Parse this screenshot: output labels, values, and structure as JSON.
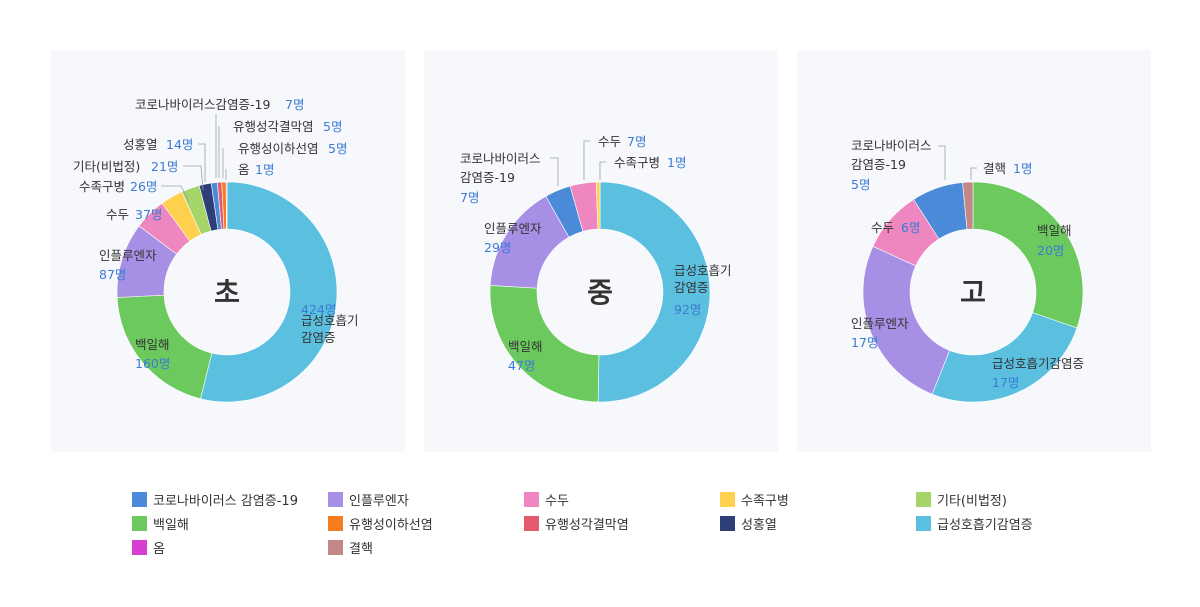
{
  "chart_data": [
    {
      "type": "donut",
      "center_label": "초",
      "unit": "명",
      "slices": [
        {
          "name": "급성호흡기감염증",
          "value": 424,
          "color": "#5bc0e0",
          "label": [
            "급성호흡기",
            "감염증"
          ],
          "value_label": "424명"
        },
        {
          "name": "백일해",
          "value": 160,
          "color": "#6cc95e",
          "label": [
            "백일해"
          ],
          "value_label": "160명"
        },
        {
          "name": "인플루엔자",
          "value": 87,
          "color": "#a88fe6",
          "label": [
            "인플루엔자"
          ],
          "value_label": "87명"
        },
        {
          "name": "수두",
          "value": 37,
          "color": "#ee86c0",
          "label": [
            "수두"
          ],
          "value_label": "37명"
        },
        {
          "name": "수족구병",
          "value": 26,
          "color": "#ffd04e",
          "label": [
            "수족구병"
          ],
          "value_label": "26명"
        },
        {
          "name": "기타(비법정)",
          "value": 21,
          "color": "#a5d468",
          "label": [
            "기타(비법정)"
          ],
          "value_label": "21명"
        },
        {
          "name": "성홍열",
          "value": 14,
          "color": "#2e3f77",
          "label": [
            "성홍열"
          ],
          "value_label": "14명"
        },
        {
          "name": "코로나바이러스감염증-19",
          "value": 7,
          "color": "#4a8ad8",
          "label": [
            "코로나바이러스감염증-19"
          ],
          "value_label": "7명"
        },
        {
          "name": "유행성각결막염",
          "value": 5,
          "color": "#e35a6e",
          "label": [
            "유행성각결막염"
          ],
          "value_label": "5명"
        },
        {
          "name": "유행성이하선염",
          "value": 5,
          "color": "#f77c1f",
          "label": [
            "유행성이하선염"
          ],
          "value_label": "5명"
        },
        {
          "name": "옴",
          "value": 1,
          "color": "#d63fcf",
          "label": [
            "옴"
          ],
          "value_label": "1명"
        }
      ]
    },
    {
      "type": "donut",
      "center_label": "중",
      "unit": "명",
      "slices": [
        {
          "name": "급성호흡기감염증",
          "value": 92,
          "color": "#5bc0e0",
          "label": [
            "급성호흡기",
            "감염증"
          ],
          "value_label": "92명"
        },
        {
          "name": "백일해",
          "value": 47,
          "color": "#6cc95e",
          "label": [
            "백일해"
          ],
          "value_label": "47명"
        },
        {
          "name": "인플루엔자",
          "value": 29,
          "color": "#a88fe6",
          "label": [
            "인플루엔자"
          ],
          "value_label": "29명"
        },
        {
          "name": "코로나바이러스감염증-19",
          "value": 7,
          "color": "#4a8ad8",
          "label": [
            "코로나바이러스",
            "감염증-19"
          ],
          "value_label": "7명"
        },
        {
          "name": "수두",
          "value": 7,
          "color": "#ee86c0",
          "label": [
            "수두"
          ],
          "value_label": "7명"
        },
        {
          "name": "수족구병",
          "value": 1,
          "color": "#ffd04e",
          "label": [
            "수족구병"
          ],
          "value_label": "1명"
        }
      ]
    },
    {
      "type": "donut",
      "center_label": "고",
      "unit": "명",
      "slices": [
        {
          "name": "백일해",
          "value": 20,
          "color": "#6cc95e",
          "label": [
            "백일해"
          ],
          "value_label": "20명"
        },
        {
          "name": "급성호흡기감염증",
          "value": 17,
          "color": "#5bc0e0",
          "label": [
            "급성호흡기감염증"
          ],
          "value_label": "17명"
        },
        {
          "name": "인플루엔자",
          "value": 17,
          "color": "#a88fe6",
          "label": [
            "인플루엔자"
          ],
          "value_label": "17명"
        },
        {
          "name": "수두",
          "value": 6,
          "color": "#ee86c0",
          "label": [
            "수두"
          ],
          "value_label": "6명"
        },
        {
          "name": "코로나바이러스감염증-19",
          "value": 5,
          "color": "#4a8ad8",
          "label": [
            "코로나바이러스",
            "감염증-19"
          ],
          "value_label": "5명"
        },
        {
          "name": "결핵",
          "value": 1,
          "color": "#c38787",
          "label": [
            "결핵"
          ],
          "value_label": "1명"
        }
      ]
    }
  ],
  "legend": [
    {
      "name": "코로나바이러스 감염증-19",
      "color": "#4a8ad8"
    },
    {
      "name": "인플루엔자",
      "color": "#a88fe6"
    },
    {
      "name": "수두",
      "color": "#ee86c0"
    },
    {
      "name": "수족구병",
      "color": "#ffd04e"
    },
    {
      "name": "기타(비법정)",
      "color": "#a5d468"
    },
    {
      "name": "백일해",
      "color": "#6cc95e"
    },
    {
      "name": "유행성이하선염",
      "color": "#f77c1f"
    },
    {
      "name": "유행성각결막염",
      "color": "#e35a6e"
    },
    {
      "name": "성홍열",
      "color": "#2e3f77"
    },
    {
      "name": "급성호흡기감염증",
      "color": "#5bc0e0"
    },
    {
      "name": "옴",
      "color": "#d63fcf"
    },
    {
      "name": "결핵",
      "color": "#c38787"
    }
  ]
}
